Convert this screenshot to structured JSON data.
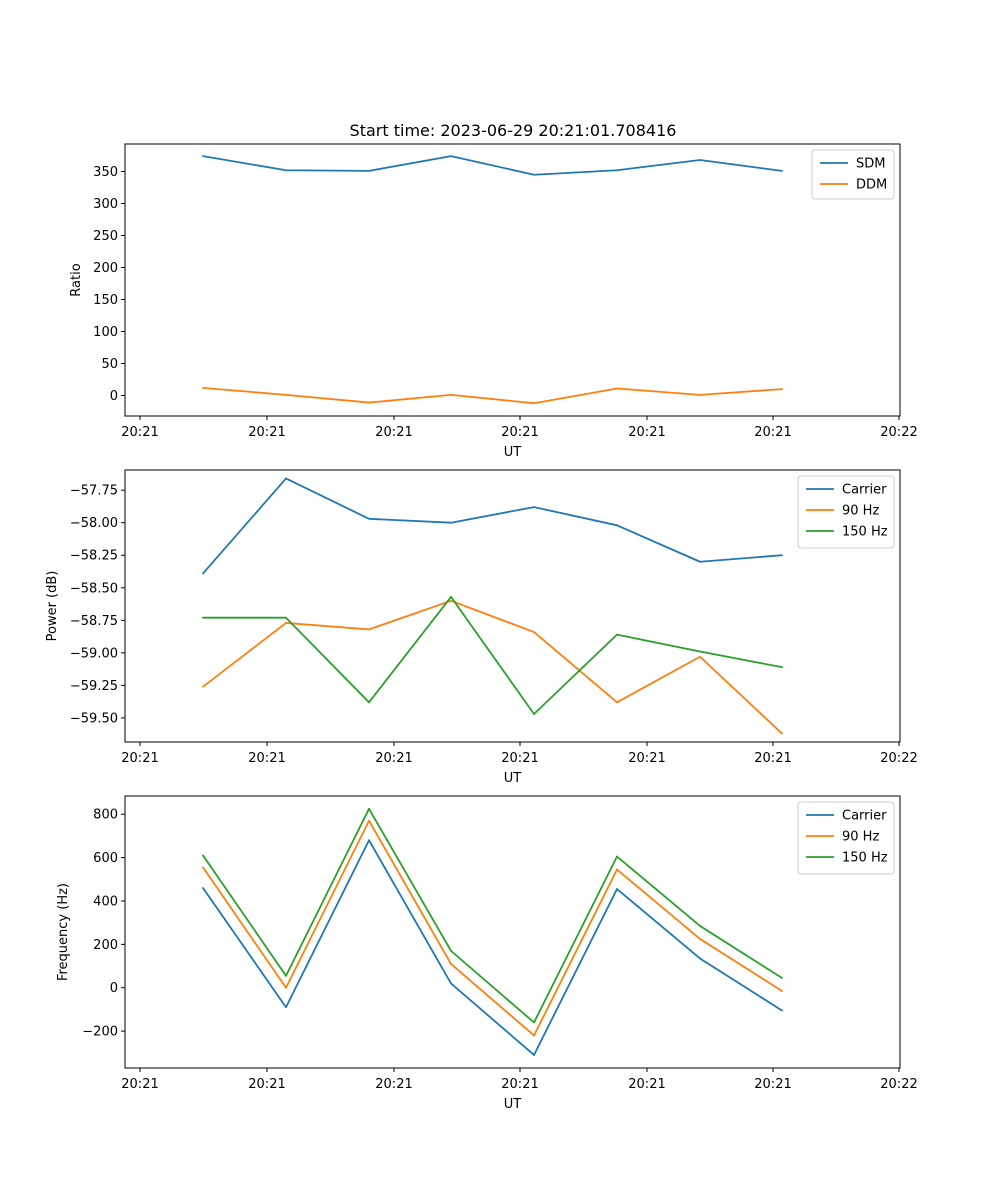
{
  "chart_data": [
    {
      "type": "line",
      "title": "Start time: 2023-06-29 20:21:01.708416",
      "xlabel": "UT",
      "ylabel": "Ratio",
      "ylim": [
        -32,
        393
      ],
      "yticks": [
        0,
        50,
        100,
        150,
        200,
        250,
        300,
        350
      ],
      "xtick_labels": [
        "20:21",
        "20:21",
        "20:21",
        "20:21",
        "20:21",
        "20:21",
        "20:22"
      ],
      "legend_position": "upper-right",
      "grid": false,
      "series": [
        {
          "name": "SDM",
          "color": "#1f77b4",
          "values": [
            374,
            352,
            351,
            374,
            345,
            352,
            368,
            351
          ]
        },
        {
          "name": "DDM",
          "color": "#ff7f0e",
          "values": [
            12,
            1,
            -11,
            1,
            -12,
            11,
            1,
            10
          ]
        }
      ]
    },
    {
      "type": "line",
      "title": "",
      "xlabel": "UT",
      "ylabel": "Power (dB)",
      "ylim": [
        -59.685,
        -57.595
      ],
      "yticks": [
        -57.75,
        -58.0,
        -58.25,
        -58.5,
        -58.75,
        -59.0,
        -59.25,
        -59.5
      ],
      "ytick_labels": [
        "−57.75",
        "−58.00",
        "−58.25",
        "−58.50",
        "−58.75",
        "−59.00",
        "−59.25",
        "−59.50"
      ],
      "xtick_labels": [
        "20:21",
        "20:21",
        "20:21",
        "20:21",
        "20:21",
        "20:21",
        "20:22"
      ],
      "legend_position": "upper-right",
      "grid": false,
      "series": [
        {
          "name": "Carrier",
          "color": "#1f77b4",
          "values": [
            -58.39,
            -57.66,
            -57.97,
            -58.0,
            -57.88,
            -58.02,
            -58.3,
            -58.25
          ]
        },
        {
          "name": "90 Hz",
          "color": "#ff7f0e",
          "values": [
            -59.26,
            -58.77,
            -58.82,
            -58.6,
            -58.84,
            -59.38,
            -59.03,
            -59.62
          ]
        },
        {
          "name": "150 Hz",
          "color": "#2ca02c",
          "values": [
            -58.73,
            -58.73,
            -59.38,
            -58.57,
            -59.47,
            -58.86,
            -58.99,
            -59.11
          ]
        }
      ]
    },
    {
      "type": "line",
      "title": "",
      "xlabel": "UT",
      "ylabel": "Frequency (Hz)",
      "ylim": [
        -370,
        884
      ],
      "yticks": [
        -200,
        0,
        200,
        400,
        600,
        800
      ],
      "ytick_labels": [
        "−200",
        "0",
        "200",
        "400",
        "600",
        "800"
      ],
      "xtick_labels": [
        "20:21",
        "20:21",
        "20:21",
        "20:21",
        "20:21",
        "20:21",
        "20:22"
      ],
      "legend_position": "upper-right",
      "grid": false,
      "series": [
        {
          "name": "Carrier",
          "color": "#1f77b4",
          "values": [
            460,
            -90,
            680,
            20,
            -310,
            455,
            135,
            -105
          ]
        },
        {
          "name": "90 Hz",
          "color": "#ff7f0e",
          "values": [
            555,
            0,
            770,
            110,
            -220,
            545,
            225,
            -15
          ]
        },
        {
          "name": "150 Hz",
          "color": "#2ca02c",
          "values": [
            610,
            55,
            825,
            170,
            -160,
            605,
            285,
            45
          ]
        }
      ]
    }
  ]
}
